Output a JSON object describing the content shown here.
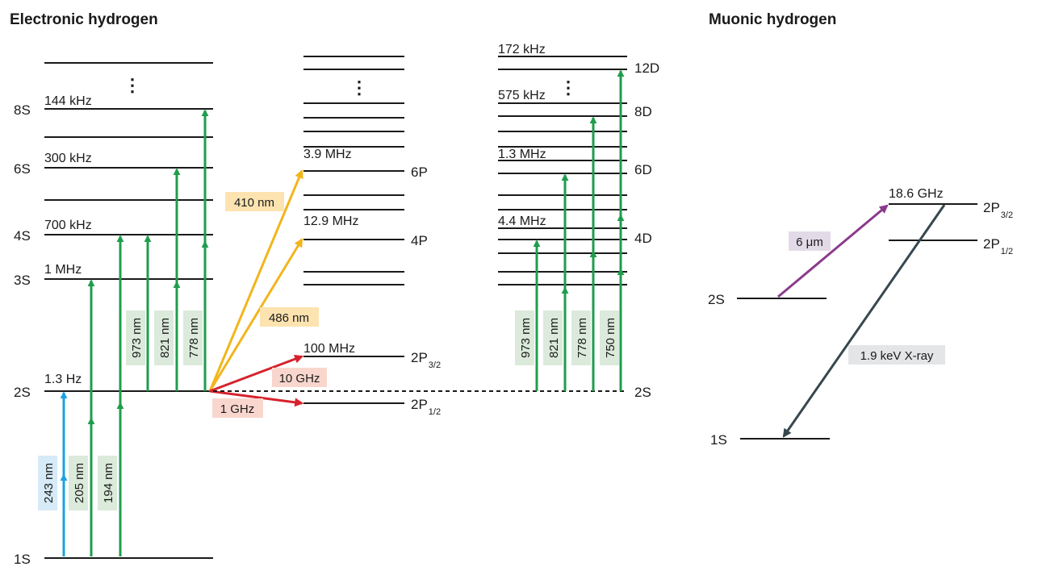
{
  "titles": {
    "electronic": "Electronic hydrogen",
    "muonic": "Muonic hydrogen"
  },
  "colors": {
    "green": "#1f9d4c",
    "blue": "#1ba3dd",
    "yellow": "#f2b51c",
    "red": "#d6232d",
    "purple": "#8b3b8c",
    "slate": "#37474f",
    "bg_green": "#dbeadb",
    "bg_blue": "#d6eaf7",
    "bg_yellow": "#fde3b0",
    "bg_red": "#f9d6cd",
    "bg_purple": "#e3dae8",
    "bg_gray": "#e3e5e6"
  },
  "electronic": {
    "state_labels": {
      "s8": "8S",
      "s6": "6S",
      "s4": "4S",
      "s3": "3S",
      "s2": "2S",
      "s1": "1S"
    },
    "width_labels": {
      "w8": "144 kHz",
      "w6": "300 kHz",
      "w4": "700 kHz",
      "w3": "1 MHz",
      "w2": "1.3 Hz"
    },
    "wavelengths_2s": [
      "973 nm",
      "821 nm",
      "778 nm"
    ],
    "wavelengths_1s": [
      "243 nm",
      "205 nm",
      "194 nm"
    ],
    "vdots": "⋮"
  },
  "p_states": {
    "labels": {
      "p6_main": "6P",
      "p4_main": "4P",
      "p_main": "2P",
      "p32_sub": "3/2",
      "p12_sub": "1/2"
    },
    "widths": {
      "w6": "3.9 MHz",
      "w4": "12.9 MHz",
      "w2": "100 MHz"
    },
    "transitions": {
      "t410": "410 nm",
      "t486": "486 nm",
      "t10g": "10 GHz",
      "t1g": "1 GHz"
    },
    "vdots": "⋮"
  },
  "d_states": {
    "labels": {
      "d12": "12D",
      "d8": "8D",
      "d6": "6D",
      "d4": "4D",
      "s2": "2S"
    },
    "widths": {
      "w12": "172 kHz",
      "w8": "575 kHz",
      "w6": "1.3 MHz",
      "w4": "4.4 MHz"
    },
    "wavelengths": [
      "973 nm",
      "821 nm",
      "778 nm",
      "750 nm"
    ],
    "vdots": "⋮"
  },
  "muonic": {
    "labels": {
      "p_main": "2P",
      "p32_sub": "3/2",
      "p12_sub": "1/2",
      "s2": "2S",
      "s1": "1S"
    },
    "width_p32": "18.6 GHz",
    "transitions": {
      "laser": "6 μm",
      "xray": "1.9 keV X-ray"
    }
  }
}
